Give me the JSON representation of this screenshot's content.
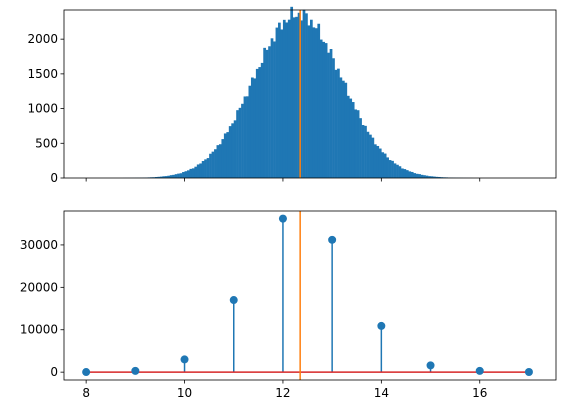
{
  "chart_data": [
    {
      "type": "histogram",
      "xlim": [
        7.55,
        17.55
      ],
      "ylim": [
        0,
        2420
      ],
      "bin_width": 0.05,
      "x_tick_labels_visible": false,
      "x_ticks": [
        8,
        10,
        12,
        14,
        16
      ],
      "y_ticks": [
        0,
        500,
        1000,
        1500,
        2000
      ],
      "y_tick_labels": [
        "0",
        "500",
        "1000",
        "1500",
        "2000"
      ],
      "vline_x": 12.35,
      "bar_color": "#1f77b4",
      "vline_color": "#ff7f0e",
      "distribution": {
        "center": 12.3,
        "std": 0.9,
        "peak": 2360,
        "xmin": 8.7,
        "xmax": 16.3
      }
    },
    {
      "type": "stem",
      "x": [
        8,
        9,
        10,
        11,
        12,
        13,
        14,
        15,
        16,
        17
      ],
      "values": [
        30,
        300,
        3000,
        17000,
        36200,
        31200,
        10900,
        1600,
        300,
        40
      ],
      "xlim": [
        7.55,
        17.55
      ],
      "ylim": [
        -1850,
        38000
      ],
      "x_ticks": [
        8,
        10,
        12,
        14,
        16
      ],
      "x_tick_labels": [
        "8",
        "10",
        "12",
        "14",
        "16"
      ],
      "y_ticks": [
        0,
        10000,
        20000,
        30000
      ],
      "y_tick_labels": [
        "0",
        "10000",
        "20000",
        "30000"
      ],
      "baseline": 0,
      "vline_x": 12.35,
      "stem_color": "#1f77b4",
      "baseline_color": "#d62728",
      "vline_color": "#ff7f0e"
    }
  ]
}
